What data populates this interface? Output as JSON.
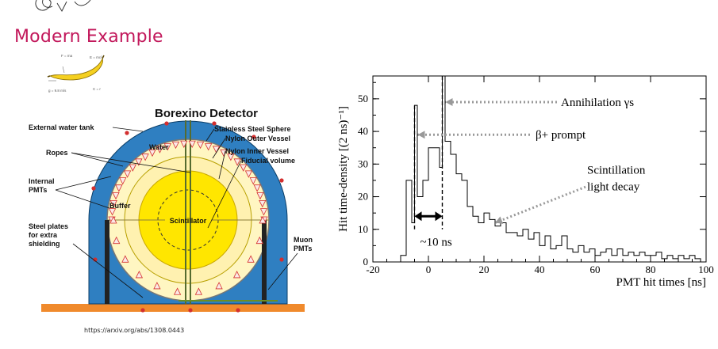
{
  "slide": {
    "title": "Modern Example",
    "source_url": "https://arxiv.org/abs/1308.0443"
  },
  "banana_icon": {
    "labels": [
      "F = ma",
      "E = mc²",
      "g = 9.8 m/s",
      "C = r"
    ]
  },
  "detector_diagram": {
    "title": "Borexino Detector",
    "labels": {
      "external_tank": "External water tank",
      "water": "Water",
      "ropes": "Ropes",
      "internal_pmts_1": "Internal",
      "internal_pmts_2": "PMTs",
      "buffer": "Buffer",
      "steel_plates_1": "Steel plates",
      "steel_plates_2": "for extra",
      "steel_plates_3": "shielding",
      "sss": "Stainless Steel Sphere",
      "nov": "Nylon Outer Vessel",
      "niv": "Nylon Inner Vessel",
      "fiducial": "Fiducial volume",
      "scintillator": "Scintillator",
      "muon_pmts_1": "Muon",
      "muon_pmts_2": "PMTs"
    },
    "colors": {
      "water": "#2f7fc1",
      "buffer": "#fff6c2",
      "scintillator": "#ffe600",
      "floor": "#f08a2c",
      "pmt": "#d32f2f"
    }
  },
  "chart_data": {
    "type": "line",
    "step": true,
    "xlabel": "PMT hit times [ns]",
    "ylabel": "Hit time-density [(2 ns)⁻¹]",
    "xlim": [
      -20,
      100
    ],
    "ylim": [
      0,
      57
    ],
    "xticks": [
      -20,
      0,
      20,
      40,
      60,
      80,
      100
    ],
    "yticks": [
      0,
      10,
      20,
      30,
      40,
      50
    ],
    "series": [
      {
        "values": [
          [
            -10,
            2
          ],
          [
            -8,
            25
          ],
          [
            -6,
            12
          ],
          [
            -5,
            48
          ],
          [
            -4,
            20
          ],
          [
            -2,
            25
          ],
          [
            0,
            35
          ],
          [
            2,
            35
          ],
          [
            4,
            29
          ],
          [
            5,
            57
          ],
          [
            6,
            37
          ],
          [
            8,
            33
          ],
          [
            10,
            27
          ],
          [
            12,
            25
          ],
          [
            14,
            17
          ],
          [
            16,
            14
          ],
          [
            18,
            12
          ],
          [
            20,
            15
          ],
          [
            22,
            13
          ],
          [
            24,
            11
          ],
          [
            26,
            12
          ],
          [
            28,
            9
          ],
          [
            30,
            9
          ],
          [
            32,
            8
          ],
          [
            34,
            10
          ],
          [
            36,
            7
          ],
          [
            38,
            9
          ],
          [
            40,
            5
          ],
          [
            42,
            8
          ],
          [
            44,
            4
          ],
          [
            46,
            5
          ],
          [
            48,
            8
          ],
          [
            50,
            4
          ],
          [
            52,
            3
          ],
          [
            54,
            5
          ],
          [
            56,
            3
          ],
          [
            58,
            4
          ],
          [
            60,
            2
          ],
          [
            62,
            3
          ],
          [
            64,
            4
          ],
          [
            66,
            2
          ],
          [
            68,
            4
          ],
          [
            70,
            2
          ],
          [
            72,
            3
          ],
          [
            74,
            2
          ],
          [
            76,
            3
          ],
          [
            78,
            2
          ],
          [
            80,
            2
          ],
          [
            82,
            3
          ],
          [
            84,
            1
          ],
          [
            86,
            2
          ],
          [
            88,
            1
          ],
          [
            90,
            2
          ],
          [
            92,
            1
          ],
          [
            94,
            2
          ],
          [
            96,
            1
          ],
          [
            98,
            0
          ]
        ]
      }
    ],
    "annotations": [
      {
        "text": "Annihilation γs",
        "points_to": [
          5,
          47
        ]
      },
      {
        "text": "β+ prompt",
        "points_to": [
          -5,
          37
        ]
      },
      {
        "text": "Scintillation",
        "points_to": [
          17,
          14
        ]
      },
      {
        "text": "light decay",
        "points_to": [
          17,
          14
        ]
      },
      {
        "text": "~10 ns",
        "span": [
          -5,
          5
        ]
      }
    ]
  }
}
